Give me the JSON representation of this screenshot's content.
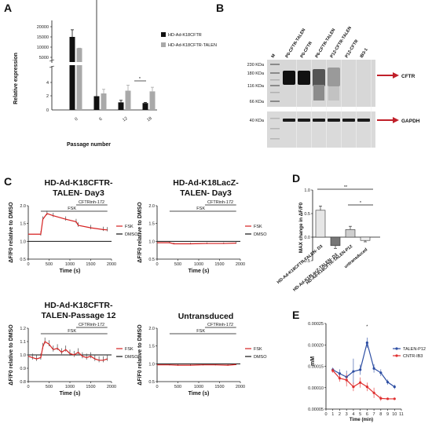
{
  "panels": {
    "A": "A",
    "B": "B",
    "C": "C",
    "D": "D",
    "E": "E"
  },
  "colors": {
    "k18cftr": "#111111",
    "talen": "#a9a9a9",
    "fsk": "#d62020",
    "dmso": "#111111",
    "talen_p12": "#2d4ea3",
    "cntr_ib3": "#e03030",
    "arrow": "#c0202a",
    "d_bar1": "#e6e6e6",
    "d_bar2": "#777777",
    "d_bar3": "#cfcfcf",
    "d_bar4": "#f0f0f0"
  },
  "panelA": {
    "ylabel": "Relative expression",
    "xlabel": "Passage number",
    "legend": [
      "HD-Ad-K18CFTR",
      "HD-Ad-K18CFTR-TALEN"
    ],
    "yticks_upper": [
      "20000",
      "15000",
      "10000",
      "5000"
    ],
    "yticks_lower": [
      "4",
      "2",
      "0"
    ],
    "star": "*"
  },
  "panelB": {
    "lanes": [
      "M",
      "P0-CFTR-TALEN",
      "P0-CFTR",
      "P6-CFTR-TALEN",
      "P12-CFTR-TALEN",
      "P12-CFTR",
      "IB3-1"
    ],
    "markers": [
      "230 KDa",
      "180 KDa",
      "116 KDa",
      "66 KDa",
      "40 KDa"
    ],
    "cftr_label": "CFTR",
    "gapdh_label": "GAPDH"
  },
  "panelC": {
    "titles": [
      "HD-Ad-K18CFTR-\nTALEN- Day3",
      "HD-Ad-K18LacZ-\nTALEN- Day3",
      "HD-Ad-K18CFTR-\nTALEN-Passage 12",
      "Untransduced"
    ],
    "ylabel": "ΔF/F0 relative to DMSO",
    "xlabel": "Time (s)",
    "fsk": "FSK",
    "inh": "CFTRinh-172",
    "legend": [
      "FSK",
      "DMSO"
    ],
    "xticks": [
      "0",
      "500",
      "1000",
      "1500",
      "2000"
    ],
    "yticks_a": [
      "2.0",
      "1.5",
      "1.0",
      "0.5"
    ],
    "yticks_b": [
      "1.2",
      "1.1",
      "1.0",
      "0.9",
      "0.8"
    ]
  },
  "panelD": {
    "ylabel": "MAX change in ΔF/F0",
    "yticks": [
      "1.0",
      "0.5",
      "0.0",
      "-0.5"
    ],
    "xlabels": [
      "HD-Ad-K18CFTR-TALEN- D3",
      "HD-Ad-K18LacZ-TALEN- D3",
      "HD-Ad-K18CFTR-TALEN-P12",
      "untransduced"
    ],
    "sig1": "**",
    "sig2": "*"
  },
  "panelE": {
    "ylabel": "mM",
    "xlabel": "Time (min)",
    "legend": [
      "TALEN-P12",
      "CNTR-IB3"
    ],
    "yticks": [
      "0.00025",
      "0.00020",
      "0.00015",
      "0.00010",
      "0.00005"
    ],
    "xticks": [
      "0",
      "1",
      "2",
      "3",
      "4",
      "5",
      "6",
      "7",
      "8",
      "9",
      "10",
      "11"
    ],
    "star": "*"
  },
  "chart_data": [
    {
      "type": "bar",
      "title": "",
      "xlabel": "Passage number",
      "ylabel": "Relative expression",
      "categories": [
        "0",
        "6",
        "12",
        "18"
      ],
      "series": [
        {
          "name": "HD-Ad-K18CFTR",
          "values": [
            15000,
            2,
            1.1,
            1.0
          ]
        },
        {
          "name": "HD-Ad-K18CFTR-TALEN",
          "values": [
            9500,
            2.4,
            2.8,
            2.7
          ]
        }
      ],
      "ylim": [
        0,
        20000
      ],
      "axis_break": [
        5,
        5000
      ]
    },
    {
      "type": "line",
      "title": "HD-Ad-K18CFTR-TALEN- Day3",
      "xlabel": "Time (s)",
      "ylabel": "ΔF/F0 relative to DMSO",
      "series": [
        {
          "name": "FSK",
          "x": [
            0,
            300,
            350,
            450,
            600,
            900,
            1150,
            1200,
            1500,
            1800,
            1900
          ],
          "y": [
            1.2,
            1.2,
            1.62,
            1.78,
            1.72,
            1.62,
            1.55,
            1.45,
            1.38,
            1.33,
            1.32
          ]
        },
        {
          "name": "DMSO",
          "x": [
            0,
            2000
          ],
          "y": [
            1.0,
            1.0
          ]
        }
      ],
      "xlim": [
        0,
        2000
      ],
      "ylim": [
        0.5,
        2.0
      ]
    },
    {
      "type": "line",
      "title": "HD-Ad-K18LacZ-TALEN- Day3",
      "xlabel": "Time (s)",
      "ylabel": "ΔF/F0 relative to DMSO",
      "series": [
        {
          "name": "FSK",
          "x": [
            0,
            300,
            400,
            800,
            1200,
            1600,
            1900
          ],
          "y": [
            0.96,
            0.96,
            0.93,
            0.93,
            0.94,
            0.94,
            0.95
          ]
        },
        {
          "name": "DMSO",
          "x": [
            0,
            2000
          ],
          "y": [
            1.0,
            1.0
          ]
        }
      ],
      "xlim": [
        0,
        2000
      ],
      "ylim": [
        0.5,
        2.0
      ]
    },
    {
      "type": "line",
      "title": "HD-Ad-K18CFTR-TALEN-Passage 12",
      "xlabel": "Time (s)",
      "ylabel": "ΔF/F0 relative to DMSO",
      "series": [
        {
          "name": "FSK",
          "x": [
            0,
            100,
            200,
            300,
            350,
            400,
            500,
            600,
            700,
            800,
            900,
            1000,
            1100,
            1200,
            1300,
            1400,
            1500,
            1600,
            1700,
            1800,
            1900
          ],
          "y": [
            0.99,
            0.98,
            0.97,
            0.98,
            1.06,
            1.1,
            1.08,
            1.04,
            1.05,
            1.02,
            1.04,
            1.01,
            1.0,
            1.02,
            0.99,
            0.98,
            0.99,
            0.97,
            0.96,
            0.96,
            0.97
          ]
        },
        {
          "name": "DMSO",
          "x": [
            0,
            2000
          ],
          "y": [
            1.0,
            1.0
          ]
        }
      ],
      "xlim": [
        0,
        2000
      ],
      "ylim": [
        0.8,
        1.2
      ]
    },
    {
      "type": "line",
      "title": "Untransduced",
      "xlabel": "Time (s)",
      "ylabel": "ΔF/F0 relative to DMSO",
      "series": [
        {
          "name": "FSK",
          "x": [
            0,
            300,
            500,
            800,
            1100,
            1400,
            1700,
            1900
          ],
          "y": [
            0.97,
            0.97,
            0.96,
            0.96,
            0.97,
            0.97,
            0.96,
            0.98
          ]
        },
        {
          "name": "DMSO",
          "x": [
            0,
            2000
          ],
          "y": [
            1.0,
            1.0
          ]
        }
      ],
      "xlim": [
        0,
        2000
      ],
      "ylim": [
        0.5,
        2.0
      ]
    },
    {
      "type": "bar",
      "title": "",
      "ylabel": "MAX change in ΔF/F0",
      "categories": [
        "HD-Ad-K18CFTR-TALEN- D3",
        "HD-Ad-K18LacZ-TALEN- D3",
        "HD-Ad-K18CFTR-TALEN-P12",
        "untransduced"
      ],
      "values": [
        0.57,
        -0.18,
        0.16,
        -0.07
      ],
      "errors": [
        0.09,
        0.06,
        0.07,
        0.03
      ],
      "ylim": [
        -0.5,
        1.0
      ]
    },
    {
      "type": "line",
      "title": "",
      "xlabel": "Time (min)",
      "ylabel": "mM",
      "x": [
        1,
        2,
        3,
        4,
        5,
        6,
        7,
        8,
        9,
        10
      ],
      "series": [
        {
          "name": "TALEN-P12",
          "values": [
            0.000142,
            0.000133,
            0.000125,
            0.000138,
            0.000142,
            0.000205,
            0.000145,
            0.000135,
            0.000113,
            0.000102
          ]
        },
        {
          "name": "CNTR-IB3",
          "values": [
            0.00014,
            0.000122,
            0.000118,
            0.000102,
            0.000112,
            0.000102,
            8.8e-05,
            7.5e-05,
            7.4e-05,
            7.4e-05
          ]
        }
      ],
      "xlim": [
        0,
        11
      ],
      "ylim": [
        5e-05,
        0.00025
      ]
    }
  ]
}
